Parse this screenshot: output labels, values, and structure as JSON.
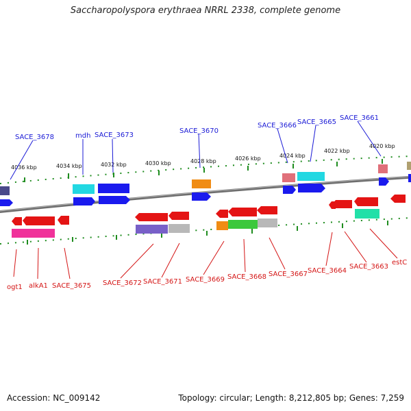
{
  "title": "Saccharopolyspora erythraea NRRL 2338, complete genome",
  "footer": {
    "accession": "Accession: NC_009142",
    "summary": "Topology: circular; Length: 8,212,805 bp; Genes: 7,259"
  },
  "scale_labels": [
    "4036 kbp",
    "4034 kbp",
    "4032 kbp",
    "4030 kbp",
    "4028 kbp",
    "4026 kbp",
    "4024 kbp",
    "4022 kbp",
    "4020 kbp"
  ],
  "forward_genes": [
    "SACE_3678",
    "mdh",
    "SACE_3673",
    "SACE_3670",
    "SACE_3666",
    "SACE_3665",
    "SACE_3661"
  ],
  "reverse_genes": [
    "ogt1",
    "alkA1",
    "SACE_3675",
    "SACE_3672",
    "SACE_3671",
    "SACE_3669",
    "SACE_3668",
    "SACE_3667",
    "SACE_3664",
    "SACE_3663",
    "estC"
  ],
  "colors": {
    "forward_label": "#1a1ad6",
    "reverse_label": "#d41414",
    "tick": "#1e8c1e",
    "backbone": "#707070"
  }
}
